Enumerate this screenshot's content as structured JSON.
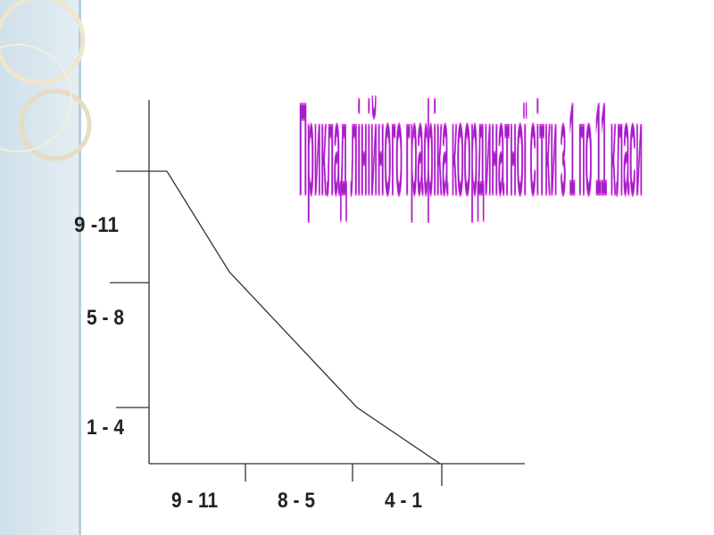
{
  "title": "Приклад лінійного графіка координатної сітки з 1 по 11 класи",
  "y_axis": {
    "labels": [
      "9 -11",
      "5 - 8",
      "1 - 4"
    ]
  },
  "x_axis": {
    "labels": [
      "9 - 11",
      "8 - 5",
      "4 - 1"
    ]
  }
}
